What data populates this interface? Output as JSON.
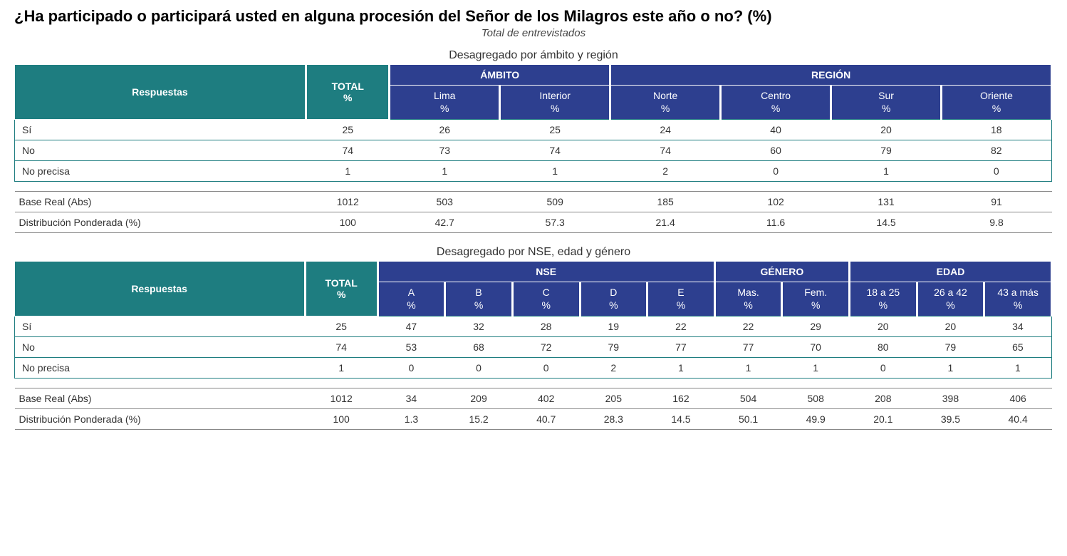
{
  "title": "¿Ha participado o participará usted en alguna procesión del Señor de los Milagros este año o no? (%)",
  "subtitle": "Total de entrevistados",
  "colors": {
    "teal": "#1e7d80",
    "navy": "#2d3f8f",
    "body_text": "#333333",
    "bg": "#ffffff",
    "base_border": "#888888"
  },
  "table1": {
    "section_title": "Desagregado por ámbito y región",
    "respuestas_hdr": "Respuestas",
    "total_hdr": "TOTAL\n%",
    "groups": [
      {
        "label": "ÁMBITO",
        "cols": [
          "Lima\n%",
          "Interior\n%"
        ]
      },
      {
        "label": "REGIÓN",
        "cols": [
          "Norte\n%",
          "Centro\n%",
          "Sur\n%",
          "Oriente\n%"
        ]
      }
    ],
    "rows": [
      {
        "label": "Sí",
        "vals": [
          "25",
          "26",
          "25",
          "24",
          "40",
          "20",
          "18"
        ]
      },
      {
        "label": "No",
        "vals": [
          "74",
          "73",
          "74",
          "74",
          "60",
          "79",
          "82"
        ]
      },
      {
        "label": "No precisa",
        "vals": [
          "1",
          "1",
          "1",
          "2",
          "0",
          "1",
          "0"
        ]
      }
    ],
    "base": [
      {
        "label": "Base Real (Abs)",
        "vals": [
          "1012",
          "503",
          "509",
          "185",
          "102",
          "131",
          "91"
        ]
      },
      {
        "label": "Distribución Ponderada (%)",
        "vals": [
          "100",
          "42.7",
          "57.3",
          "21.4",
          "11.6",
          "14.5",
          "9.8"
        ]
      }
    ]
  },
  "table2": {
    "section_title": "Desagregado por NSE, edad y género",
    "respuestas_hdr": "Respuestas",
    "total_hdr": "TOTAL\n%",
    "groups": [
      {
        "label": "NSE",
        "cols": [
          "A\n%",
          "B\n%",
          "C\n%",
          "D\n%",
          "E\n%"
        ]
      },
      {
        "label": "GÉNERO",
        "cols": [
          "Mas.\n%",
          "Fem.\n%"
        ]
      },
      {
        "label": "EDAD",
        "cols": [
          "18 a 25\n%",
          "26 a 42\n%",
          "43 a más\n%"
        ]
      }
    ],
    "rows": [
      {
        "label": "Sí",
        "vals": [
          "25",
          "47",
          "32",
          "28",
          "19",
          "22",
          "22",
          "29",
          "20",
          "20",
          "34"
        ]
      },
      {
        "label": "No",
        "vals": [
          "74",
          "53",
          "68",
          "72",
          "79",
          "77",
          "77",
          "70",
          "80",
          "79",
          "65"
        ]
      },
      {
        "label": "No precisa",
        "vals": [
          "1",
          "0",
          "0",
          "0",
          "2",
          "1",
          "1",
          "1",
          "0",
          "1",
          "1"
        ]
      }
    ],
    "base": [
      {
        "label": "Base Real (Abs)",
        "vals": [
          "1012",
          "34",
          "209",
          "402",
          "205",
          "162",
          "504",
          "508",
          "208",
          "398",
          "406"
        ]
      },
      {
        "label": "Distribución Ponderada (%)",
        "vals": [
          "100",
          "1.3",
          "15.2",
          "40.7",
          "28.3",
          "14.5",
          "50.1",
          "49.9",
          "20.1",
          "39.5",
          "40.4"
        ]
      }
    ]
  }
}
